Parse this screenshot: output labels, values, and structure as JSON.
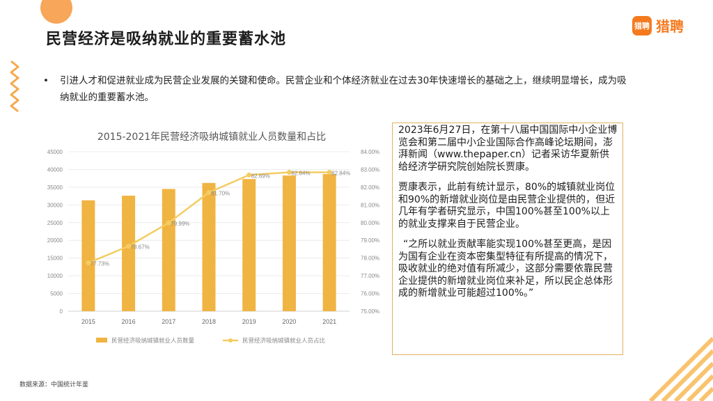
{
  "title": "民营经济是吸纳就业的重要蓄水池",
  "logo": {
    "badge": "猎聘",
    "text": "猎聘"
  },
  "bullet": {
    "dot": "•",
    "text": "引进人才和促进就业成为民营企业发展的关键和使命。民营企业和个体经济就业在过去30年快速增长的基础之上，继续明显增长，成为吸纳就业的重要蓄水池。"
  },
  "chart_data": {
    "type": "bar",
    "title": "2015-2021年民营经济吸纳城镇就业人员数量和占比",
    "categories": [
      "2015",
      "2016",
      "2017",
      "2018",
      "2019",
      "2020",
      "2021"
    ],
    "series": [
      {
        "name": "民营经济吸纳城镇就业人员数量",
        "type": "bar",
        "axis": "left",
        "color": "#f0b442",
        "values": [
          31300,
          32600,
          34500,
          36200,
          37300,
          38300,
          38700
        ]
      },
      {
        "name": "民营经济吸纳城镇就业人员占比",
        "type": "line",
        "axis": "right",
        "color": "#f4cc62",
        "values": [
          77.73,
          78.67,
          79.99,
          81.7,
          82.69,
          82.84,
          82.84
        ],
        "labels": [
          "77.73%",
          "78.67%",
          "79.99%",
          "81.70%",
          "82.69%",
          "82.84%",
          "82.84%"
        ]
      }
    ],
    "y_left": {
      "min": 0,
      "max": 45000,
      "ticks": [
        "0",
        "5000",
        "10000",
        "15000",
        "20000",
        "25000",
        "30000",
        "35000",
        "40000",
        "45000"
      ]
    },
    "y_right": {
      "min": 75,
      "max": 84,
      "ticks": [
        "75.00%",
        "76.00%",
        "77.00%",
        "78.00%",
        "79.00%",
        "80.00%",
        "81.00%",
        "82.00%",
        "83.00%",
        "84.00%"
      ]
    },
    "grid": true,
    "legend": "bottom"
  },
  "quote": {
    "p1": "2023年6月27日，在第十八届中国国际中小企业博览会和第二届中小企业国际合作高峰论坛期间，澎湃新闻（www.thepaper.cn）记者采访华夏新供给经济学研究院创始院长贾康。",
    "p2": "贾康表示，此前有统计显示，80%的城镇就业岗位和90%的新增就业岗位是由民营企业提供的，但近几年有学者研究显示，中国100%甚至100%以上的就业支撑来自于民营企业。",
    "p3": "“之所以就业贡献率能实现100%甚至更高，是因为国有企业在资本密集型特征有所提高的情况下，吸收就业的绝对值有所减少，这部分需要依靠民营企业提供的新增就业岗位来补足，所以民企总体形成的新增就业可能超过100%。”"
  },
  "source": "数据来源：中国统计年鉴"
}
